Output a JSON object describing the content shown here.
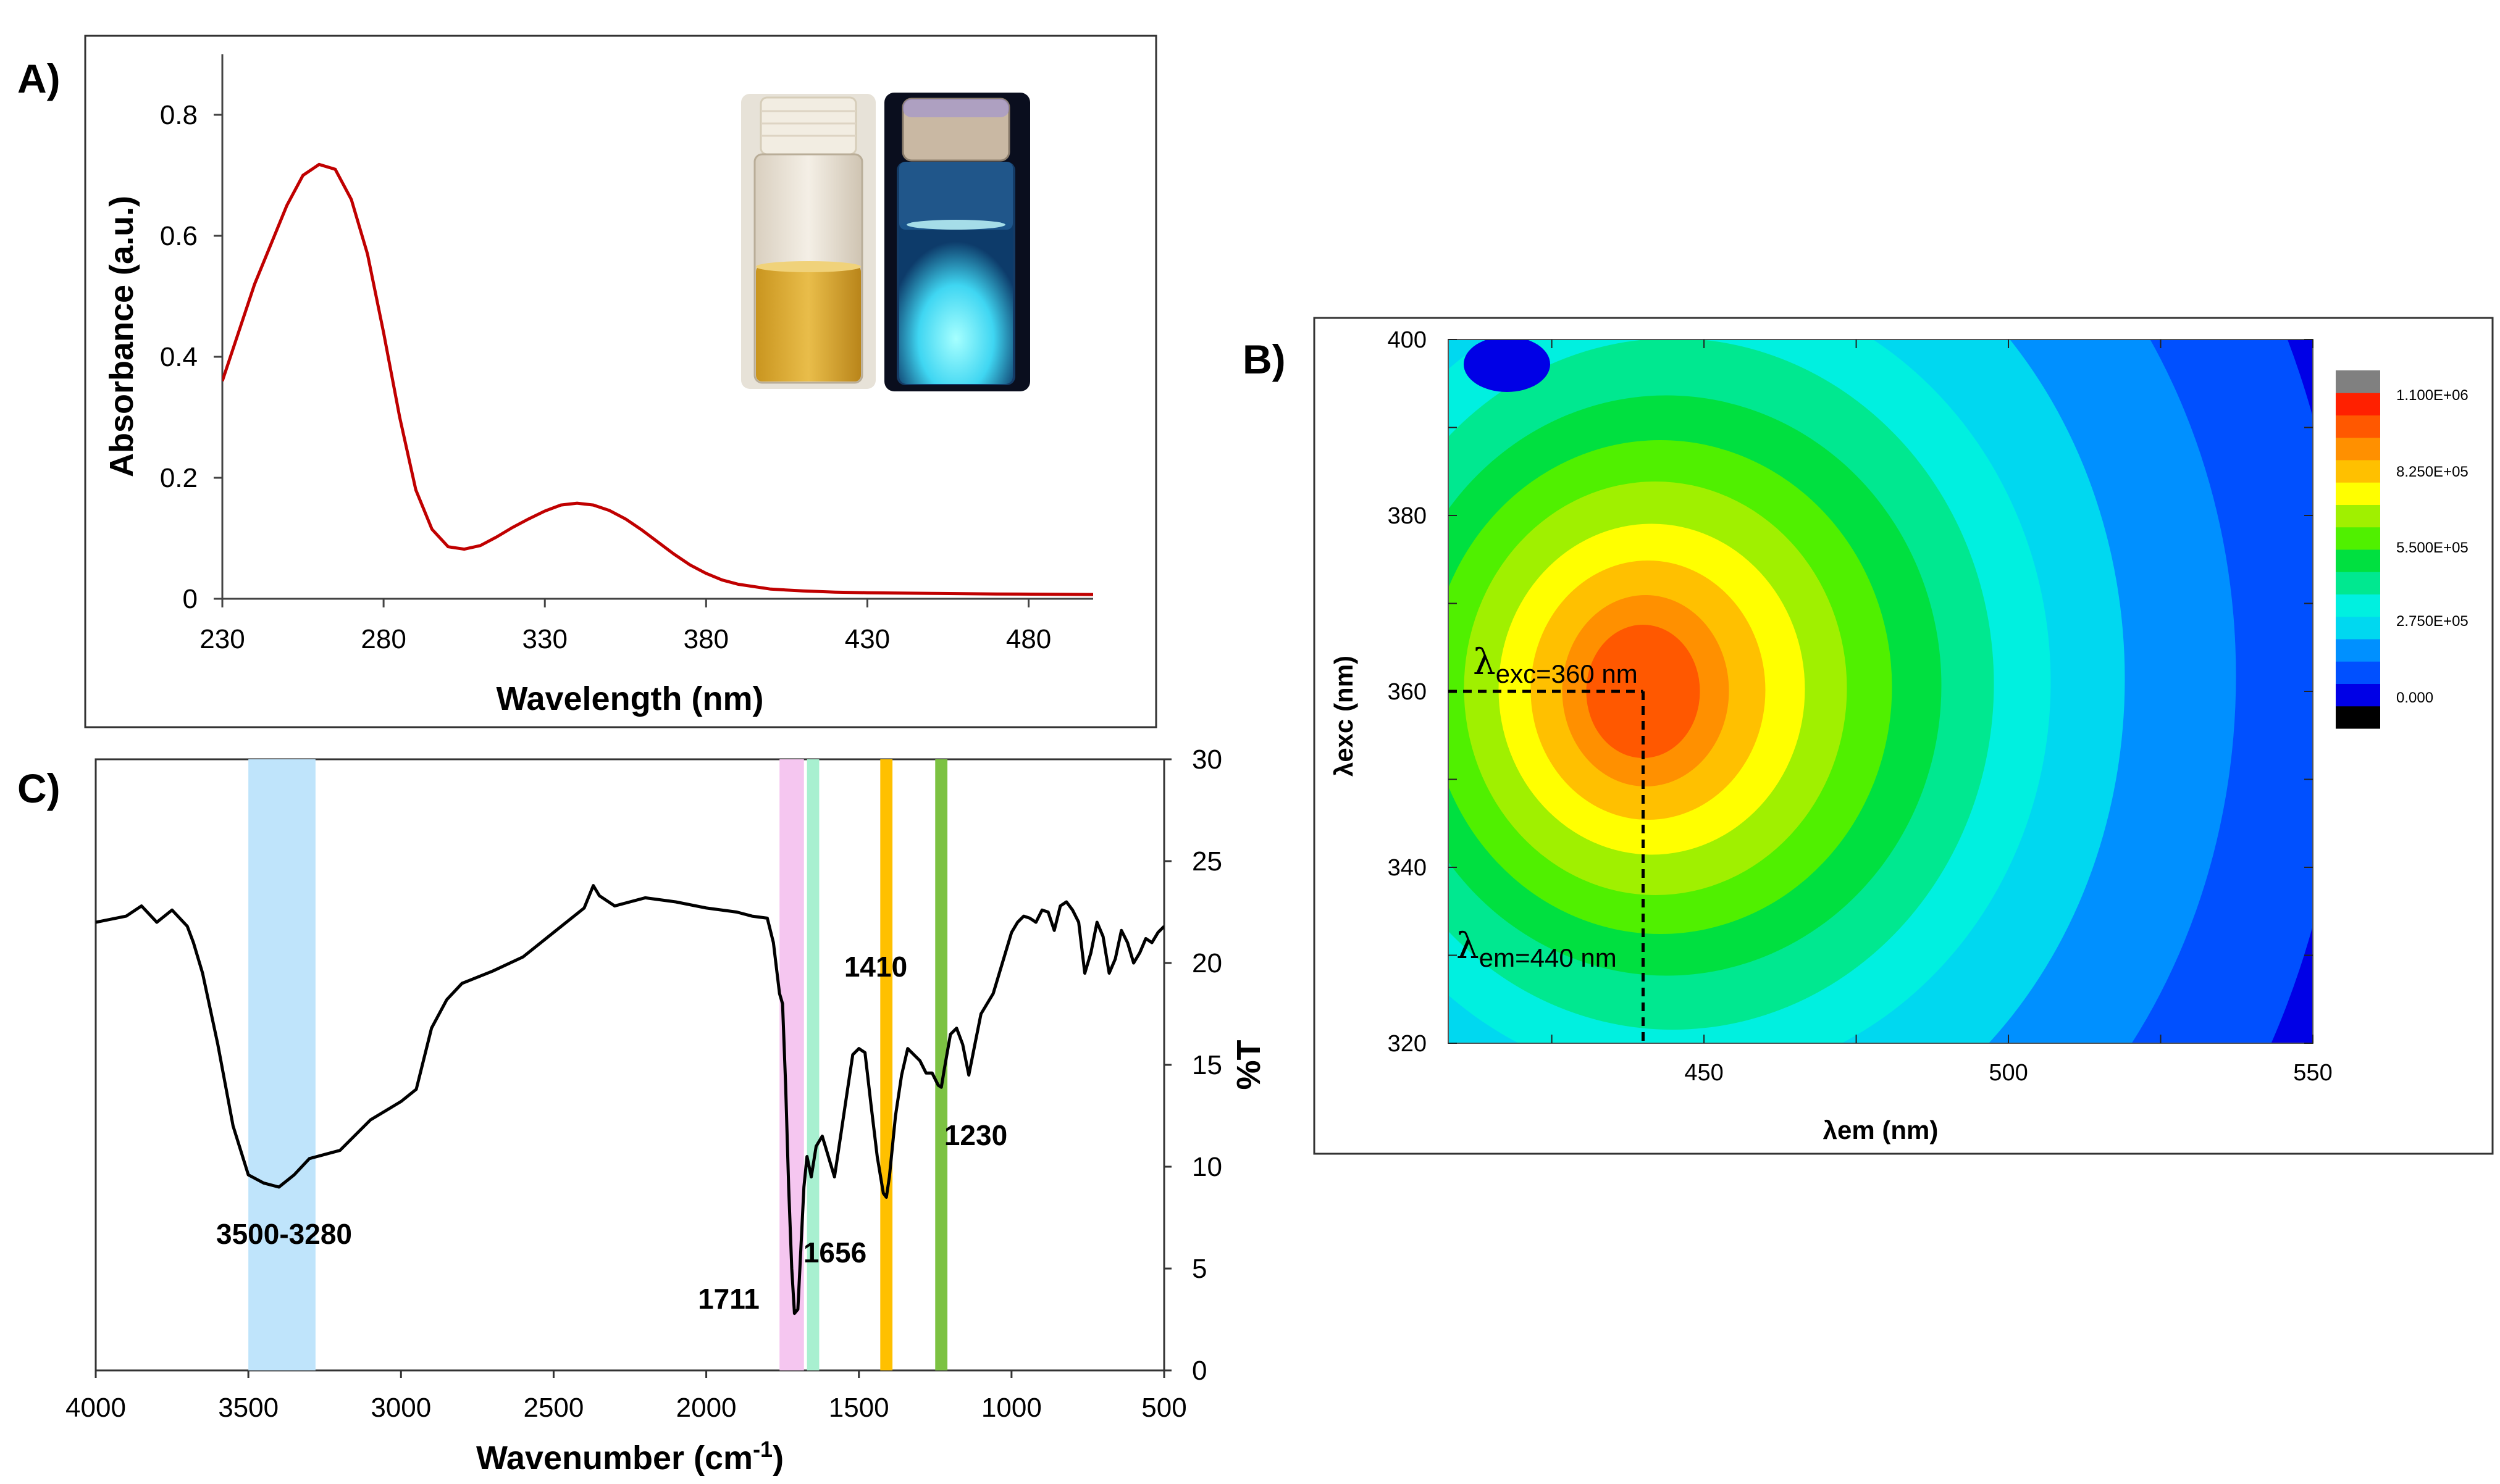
{
  "panels": {
    "a": "A)",
    "b": "B)",
    "c": "C)"
  },
  "chart_data": [
    {
      "panel": "A",
      "type": "line",
      "xlabel": "Wavelength (nm)",
      "ylabel": "Absorbance (a.u.)",
      "xlim": [
        230,
        500
      ],
      "ylim": [
        0,
        0.9
      ],
      "xticks": [
        "230",
        "280",
        "330",
        "380",
        "430",
        "480"
      ],
      "yticks": [
        "0",
        "0.2",
        "0.4",
        "0.6",
        "0.8"
      ],
      "line_color": "#c00000",
      "x": [
        230,
        240,
        250,
        255,
        260,
        265,
        270,
        275,
        280,
        285,
        290,
        295,
        300,
        305,
        310,
        315,
        320,
        325,
        330,
        335,
        340,
        345,
        350,
        355,
        360,
        365,
        370,
        375,
        380,
        385,
        390,
        400,
        410,
        420,
        430,
        450,
        470,
        500
      ],
      "y": [
        0.36,
        0.52,
        0.65,
        0.7,
        0.718,
        0.71,
        0.66,
        0.57,
        0.44,
        0.3,
        0.18,
        0.115,
        0.086,
        0.082,
        0.088,
        0.102,
        0.118,
        0.132,
        0.145,
        0.155,
        0.158,
        0.155,
        0.146,
        0.132,
        0.114,
        0.094,
        0.074,
        0.056,
        0.042,
        0.031,
        0.024,
        0.016,
        0.013,
        0.011,
        0.01,
        0.009,
        0.008,
        0.007
      ],
      "inset": "two vials: left under daylight (yellow solution), right under UV light (cyan-blue fluorescence)"
    },
    {
      "panel": "B",
      "type": "heatmap",
      "xlabel": "λem (nm)",
      "ylabel": "λexc (nm)",
      "xlim": [
        408,
        550
      ],
      "ylim": [
        320,
        400
      ],
      "xticks": [
        "450",
        "500",
        "550"
      ],
      "yticks": [
        "320",
        "340",
        "360",
        "380",
        "400"
      ],
      "peak": {
        "em": 440,
        "exc": 360
      },
      "annotations": {
        "exc_symbol": "λ",
        "exc_subscript": "exc=360 nm",
        "em_symbol": "λ",
        "em_subscript": "em=440 nm"
      },
      "colorbar": {
        "labels": [
          "1.100E+06",
          "8.250E+05",
          "5.500E+05",
          "2.750E+05",
          "0.000"
        ],
        "colors": [
          "#000000",
          "#0000e6",
          "#0050ff",
          "#0090ff",
          "#00d8f0",
          "#00f0e0",
          "#00e890",
          "#00e040",
          "#50f000",
          "#a0f000",
          "#ffff00",
          "#ffc000",
          "#ff9000",
          "#ff5800",
          "#ff2000",
          "#808080"
        ]
      }
    },
    {
      "panel": "C",
      "type": "line",
      "xlabel_main": "Wavenumber (cm",
      "xlabel_sup": "-1",
      "xlabel_tail": ")",
      "ylabel": "%T",
      "xlim": [
        4000,
        500
      ],
      "ylim": [
        0,
        30
      ],
      "xticks": [
        "4000",
        "3500",
        "3000",
        "2500",
        "2000",
        "1500",
        "1000",
        "500"
      ],
      "yticks": [
        "0",
        "5",
        "10",
        "15",
        "20",
        "25",
        "30"
      ],
      "bands": [
        {
          "from": 3500,
          "to": 3280,
          "color": "#bfe4fb",
          "label": "3500-3280"
        },
        {
          "from": 1760,
          "to": 1680,
          "color": "#f5c6f0",
          "label": "1711"
        },
        {
          "from": 1670,
          "to": 1630,
          "color": "#a8f0d0",
          "label": "1656"
        },
        {
          "from": 1430,
          "to": 1390,
          "color": "#ffc000",
          "label": "1410"
        },
        {
          "from": 1250,
          "to": 1210,
          "color": "#7cc242",
          "label": "1230"
        }
      ],
      "x": [
        4000,
        3900,
        3850,
        3800,
        3750,
        3700,
        3680,
        3650,
        3600,
        3550,
        3500,
        3450,
        3400,
        3350,
        3300,
        3250,
        3200,
        3100,
        3000,
        2950,
        2900,
        2850,
        2800,
        2700,
        2600,
        2500,
        2400,
        2370,
        2350,
        2300,
        2200,
        2100,
        2000,
        1900,
        1850,
        1800,
        1780,
        1760,
        1750,
        1740,
        1730,
        1720,
        1711,
        1700,
        1690,
        1680,
        1670,
        1656,
        1640,
        1620,
        1600,
        1580,
        1560,
        1540,
        1520,
        1500,
        1480,
        1460,
        1440,
        1420,
        1410,
        1400,
        1380,
        1360,
        1340,
        1320,
        1300,
        1280,
        1260,
        1240,
        1230,
        1220,
        1200,
        1180,
        1160,
        1140,
        1120,
        1100,
        1080,
        1060,
        1040,
        1020,
        1000,
        980,
        960,
        940,
        920,
        900,
        880,
        860,
        840,
        820,
        800,
        780,
        760,
        740,
        720,
        700,
        680,
        660,
        640,
        620,
        600,
        580,
        560,
        540,
        520,
        500
      ],
      "y": [
        22.0,
        22.3,
        22.8,
        22.0,
        22.6,
        21.8,
        21.0,
        19.5,
        16.0,
        12.0,
        9.6,
        9.2,
        9.0,
        9.6,
        10.4,
        10.6,
        10.8,
        12.3,
        13.2,
        13.8,
        16.8,
        18.2,
        19.0,
        19.6,
        20.3,
        21.5,
        22.7,
        23.8,
        23.3,
        22.8,
        23.2,
        23.0,
        22.7,
        22.5,
        22.3,
        22.2,
        21.0,
        18.5,
        18.0,
        14.0,
        9.0,
        5.0,
        2.8,
        3.0,
        6.0,
        9.0,
        10.5,
        9.5,
        11.0,
        11.5,
        10.5,
        9.5,
        11.5,
        13.5,
        15.5,
        15.8,
        15.6,
        13.0,
        10.5,
        8.7,
        8.5,
        9.5,
        12.5,
        14.5,
        15.8,
        15.5,
        15.2,
        14.6,
        14.6,
        14.0,
        13.9,
        14.8,
        16.5,
        16.8,
        16.0,
        14.5,
        16.0,
        17.5,
        18.0,
        18.5,
        19.5,
        20.5,
        21.5,
        22.0,
        22.3,
        22.2,
        22.0,
        22.6,
        22.5,
        21.6,
        22.8,
        23.0,
        22.6,
        22.0,
        19.5,
        20.5,
        22.0,
        21.3,
        19.5,
        20.2,
        21.6,
        21.0,
        20.0,
        20.5,
        21.2,
        21.0,
        21.5,
        21.8
      ]
    }
  ]
}
